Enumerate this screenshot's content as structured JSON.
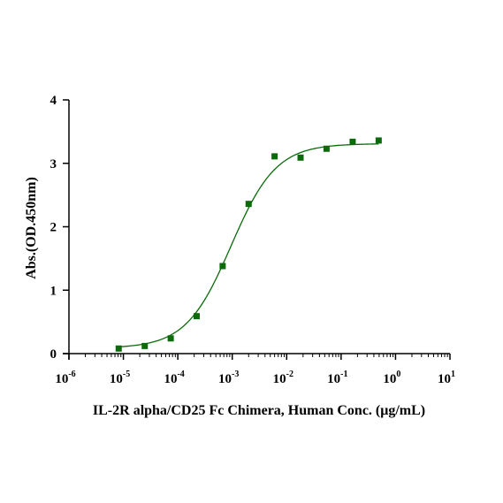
{
  "chart_data": {
    "type": "scatter",
    "title": "",
    "xlabel": "IL-2R alpha/CD25 Fc Chimera, Human Conc. (μg/mL)",
    "ylabel": "Abs.(OD.450nm)",
    "x_scale": "log10",
    "xlim": [
      1e-06,
      10
    ],
    "ylim": [
      0,
      4
    ],
    "x_ticks": [
      {
        "base": "10",
        "exp": "-6"
      },
      {
        "base": "10",
        "exp": "-5"
      },
      {
        "base": "10",
        "exp": "-4"
      },
      {
        "base": "10",
        "exp": "-3"
      },
      {
        "base": "10",
        "exp": "-2"
      },
      {
        "base": "10",
        "exp": "-1"
      },
      {
        "base": "10",
        "exp": "0"
      },
      {
        "base": "10",
        "exp": "1"
      }
    ],
    "y_ticks": [
      "0",
      "1",
      "2",
      "3",
      "4"
    ],
    "grid": false,
    "legend": "none",
    "series": [
      {
        "color": "#0b6b0b",
        "marker": "square",
        "fit": "four-parameter logistic curve",
        "x": [
          8.2e-06,
          2.47e-05,
          7.41e-05,
          0.000222,
          0.000667,
          0.002,
          0.006,
          0.018,
          0.054,
          0.163,
          0.49
        ],
        "y": [
          0.08,
          0.12,
          0.24,
          0.59,
          1.38,
          2.36,
          3.11,
          3.09,
          3.23,
          3.34,
          3.36
        ]
      }
    ]
  }
}
